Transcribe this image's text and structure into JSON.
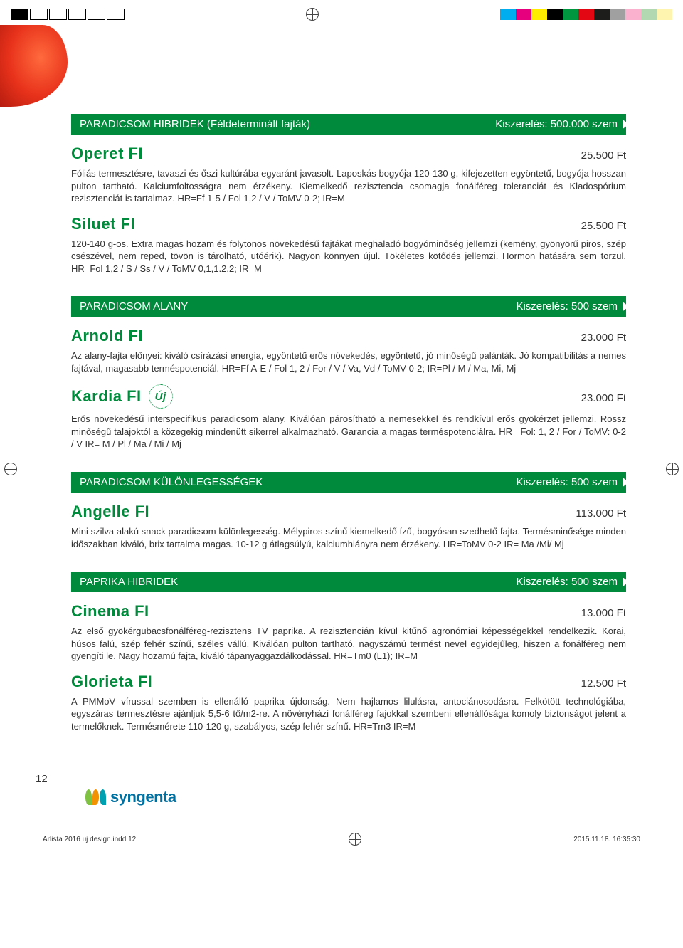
{
  "printMarks": {
    "colorSwatches": [
      "#00adef",
      "#e6007e",
      "#ffed00",
      "#000000",
      "#009640",
      "#e30613",
      "#1d1d1b",
      "#a0a0a0",
      "#f9b1cd",
      "#b2d8b2",
      "#fff3b0"
    ]
  },
  "sections": [
    {
      "title": "PARADICSOM HIBRIDEK (Féldeterminált fajták)",
      "packaging": "Kiszerelés: 500.000 szem",
      "products": [
        {
          "name": "Operet FI",
          "price": "25.500 Ft",
          "desc": "Fóliás termesztésre, tavaszi és őszi kultúrába egyaránt javasolt. Laposkás bogyója 120-130 g, kifejezetten egyöntetű, bogyója hosszan pulton tartható. Kalciumfoltosságra nem érzékeny. Kiemelkedő rezisztencia csomagja fonálféreg toleranciát és Kladospórium rezisztenciát is tartalmaz. HR=Ff 1-5 / Fol 1,2 / V / ToMV 0-2; IR=M"
        },
        {
          "name": "Siluet FI",
          "price": "25.500 Ft",
          "desc": "120-140 g-os. Extra magas hozam és folytonos növekedésű fajtákat meghaladó bogyóminőség jellemzi (kemény, gyönyörű piros, szép csészével, nem reped, tövön is tárolható, utóérik). Nagyon könnyen újul. Tökéletes kötődés jellemzi. Hormon hatására sem torzul. HR=Fol 1,2 / S / Ss / V / ToMV 0,1,1.2,2; IR=M"
        }
      ]
    },
    {
      "title": "PARADICSOM ALANY",
      "packaging": "Kiszerelés: 500 szem",
      "products": [
        {
          "name": "Arnold FI",
          "price": "23.000 Ft",
          "desc": "Az alany-fajta előnyei: kiváló csírázási energia, egyöntetű erős növekedés, egyöntetű, jó minőségű palánták. Jó kompatibilitás a nemes fajtával, magasabb terméspotenciál. HR=Ff A-E / Fol 1, 2 / For / V / Va, Vd / ToMV 0-2; IR=Pl / M / Ma, Mi, Mj"
        },
        {
          "name": "Kardia FI",
          "badge": "Új",
          "price": "23.000 Ft",
          "desc": "Erős növekedésű interspecifikus paradicsom alany. Kiválóan párosítható a nemesekkel és rendkívül erős gyökérzet jellemzi. Rossz minőségű talajoktól a közegekig mindenütt sikerrel alkalmazható. Garancia a magas terméspotenciálra. HR= Fol: 1, 2 / For / ToMV: 0-2 / V  IR= M / Pl / Ma / Mi / Mj"
        }
      ]
    },
    {
      "title": "PARADICSOM KÜLÖNLEGESSÉGEK",
      "packaging": "Kiszerelés: 500 szem",
      "products": [
        {
          "name": "Angelle FI",
          "price": "113.000 Ft",
          "desc": "Mini szilva alakú snack paradicsom különlegesség. Mélypiros színű kiemelkedő ízű, bogyósan szedhető fajta. Termésminősége minden időszakban kiváló, brix tartalma magas. 10-12 g átlagsúlyú, kalciumhiányra nem érzékeny. HR=ToMV 0-2   IR= Ma /Mi/ Mj"
        }
      ]
    },
    {
      "title": "PAPRIKA HIBRIDEK",
      "packaging": "Kiszerelés: 500 szem",
      "products": [
        {
          "name": "Cinema FI",
          "price": "13.000 Ft",
          "desc": "Az első gyökérgubacsfonálféreg-rezisztens TV paprika. A rezisztencián kívül kitűnő agronómiai képességekkel rendelkezik. Korai, húsos falú, szép fehér színű, széles vállú. Kiválóan pulton tartható, nagyszámú termést nevel egyidejűleg, hiszen a fonálféreg nem gyengíti le. Nagy hozamú fajta, kiváló tápanyaggazdálkodással. HR=Tm0 (L1); IR=M"
        },
        {
          "name": "Glorieta FI",
          "price": "12.500 Ft",
          "desc": "A  PMMoV vírussal szemben is ellenálló paprika újdonság. Nem hajlamos lilulásra, antociánosodásra. Felkötött technológiába, egyszáras termesztésre ajánljuk 5,5-6 tő/m2-re. A növényházi fonálféreg fajokkal szembeni ellenállósága komoly biztonságot jelent a termelőknek. Termésmérete 110-120 g, szabályos, szép fehér színű. HR=Tm3   IR=M"
        }
      ]
    }
  ],
  "pageNumber": "12",
  "logo": "syngenta",
  "footer": {
    "file": "Arlista 2016 uj design.indd   12",
    "timestamp": "2015.11.18.   16:35:30"
  }
}
